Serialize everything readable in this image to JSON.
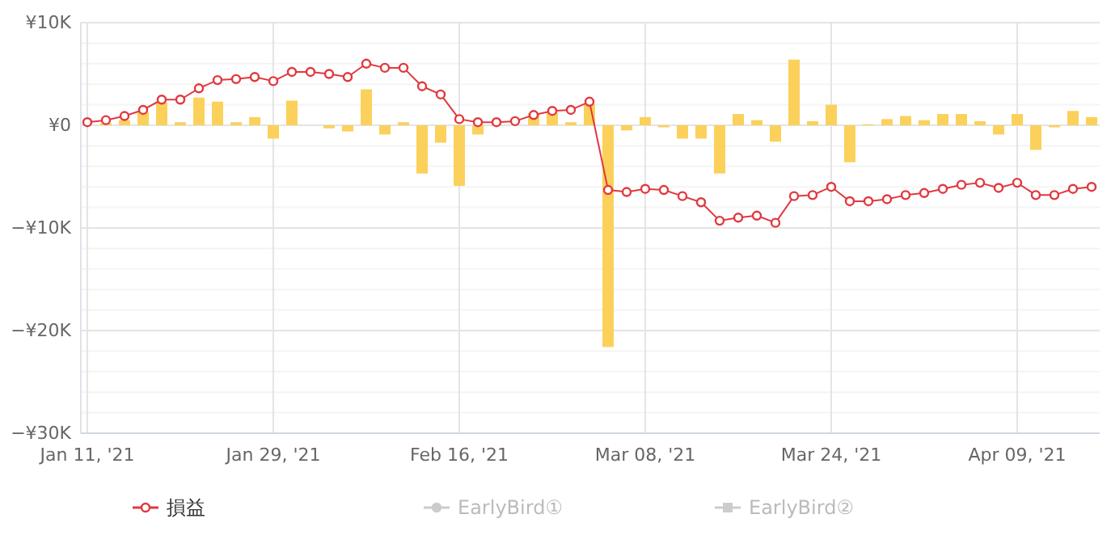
{
  "chart_data": {
    "type": "bar",
    "categories": [
      "Jan 11, '21",
      null,
      null,
      null,
      null,
      null,
      null,
      null,
      null,
      null,
      "Jan 29, '21",
      null,
      null,
      null,
      null,
      null,
      null,
      null,
      null,
      null,
      "Feb 16, '21",
      null,
      null,
      null,
      null,
      null,
      null,
      null,
      null,
      null,
      "Mar 08, '21",
      null,
      null,
      null,
      null,
      null,
      null,
      null,
      null,
      null,
      "Mar 24, '21",
      null,
      null,
      null,
      null,
      null,
      null,
      null,
      null,
      null,
      "Apr 09, '21",
      null,
      null,
      null,
      null
    ],
    "series": [
      {
        "color": "#fbd15b",
        "values": [
          0,
          0.2,
          0.5,
          1.3,
          2.2,
          0.3,
          2.7,
          2.3,
          0.3,
          0.8,
          -1.3,
          2.4,
          0,
          -0.3,
          -0.6,
          3.5,
          -0.9,
          0.3,
          -4.7,
          -1.7,
          -5.9,
          -0.9,
          0,
          0,
          1.2,
          1.2,
          0.3,
          2.1,
          -21.6,
          -0.5,
          0.8,
          -0.2,
          -1.3,
          -1.3,
          -4.7,
          1.1,
          0.5,
          -1.6,
          6.4,
          0.4,
          2.0,
          -3.6,
          0.1,
          0.6,
          0.9,
          0.5,
          1.1,
          1.1,
          0.4,
          -0.9,
          1.1,
          -2.4,
          -0.2,
          1.4,
          0.8
        ]
      },
      {
        "type": "line",
        "name": "損益",
        "color": "#e0393e",
        "marker": "circle",
        "values": [
          0.3,
          0.5,
          0.9,
          1.5,
          2.5,
          2.5,
          3.6,
          4.4,
          4.5,
          4.7,
          4.3,
          5.2,
          5.2,
          5.0,
          4.7,
          6.0,
          5.6,
          5.6,
          3.8,
          3.0,
          0.6,
          0.3,
          0.3,
          0.4,
          1.0,
          1.4,
          1.5,
          2.3,
          -6.3,
          -6.5,
          -6.2,
          -6.3,
          -6.9,
          -7.5,
          -9.3,
          -9.0,
          -8.8,
          -9.5,
          -6.9,
          -6.8,
          -6.0,
          -7.4,
          -7.4,
          -7.2,
          -6.8,
          -6.6,
          -6.2,
          -5.8,
          -5.6,
          -6.1,
          -5.6,
          -6.8,
          -6.8,
          -6.2,
          -6.0
        ]
      },
      {
        "type": "line",
        "name": "EarlyBird①",
        "color": "#cccccc",
        "marker": "circle",
        "values": [
          null,
          null,
          null,
          null,
          null,
          null,
          null,
          null,
          null,
          null,
          null,
          null,
          null,
          null,
          null,
          null,
          null,
          null,
          null,
          null,
          null,
          null,
          null,
          null,
          null,
          null,
          null,
          null,
          null,
          null,
          null,
          null,
          null,
          null,
          null,
          null,
          null,
          null,
          null,
          null,
          null,
          null,
          null,
          null,
          null,
          null,
          null,
          null,
          null,
          null,
          null,
          null,
          null,
          null,
          null
        ]
      },
      {
        "type": "line",
        "name": "EarlyBird②",
        "color": "#cccccc",
        "marker": "square",
        "values": [
          null,
          null,
          null,
          null,
          null,
          null,
          null,
          null,
          null,
          null,
          null,
          null,
          null,
          null,
          null,
          null,
          null,
          null,
          null,
          null,
          null,
          null,
          null,
          null,
          null,
          null,
          null,
          null,
          null,
          null,
          null,
          null,
          null,
          null,
          null,
          null,
          null,
          null,
          null,
          null,
          null,
          null,
          null,
          null,
          null,
          null,
          null,
          null,
          null,
          null,
          null,
          null,
          null,
          null,
          null
        ]
      }
    ],
    "ylim": [
      -30,
      10
    ],
    "yticks": [
      {
        "value": 10,
        "label": "¥10K"
      },
      {
        "value": 8,
        "label": null
      },
      {
        "value": 6,
        "label": null
      },
      {
        "value": 4,
        "label": null
      },
      {
        "value": 2,
        "label": null
      },
      {
        "value": 0,
        "label": "¥0"
      },
      {
        "value": -2,
        "label": null
      },
      {
        "value": -4,
        "label": null
      },
      {
        "value": -6,
        "label": null
      },
      {
        "value": -8,
        "label": null
      },
      {
        "value": -10,
        "label": "−¥10K"
      },
      {
        "value": -12,
        "label": null
      },
      {
        "value": -14,
        "label": null
      },
      {
        "value": -16,
        "label": null
      },
      {
        "value": -18,
        "label": null
      },
      {
        "value": -20,
        "label": "−¥20K"
      },
      {
        "value": -22,
        "label": null
      },
      {
        "value": -24,
        "label": null
      },
      {
        "value": -26,
        "label": null
      },
      {
        "value": -28,
        "label": null
      },
      {
        "value": -30,
        "label": "−¥30K"
      }
    ],
    "grid": true,
    "legend": "bottom"
  }
}
